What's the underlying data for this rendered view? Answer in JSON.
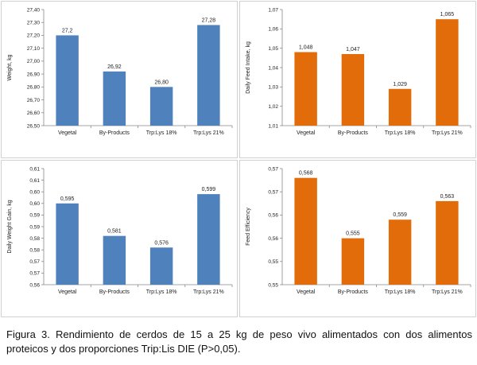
{
  "chart_data": [
    {
      "type": "bar",
      "categories": [
        "Vegetal",
        "By-Products",
        "Trp:Lys 18%",
        "Trp:Lys 21%"
      ],
      "values": [
        27.2,
        26.92,
        26.8,
        27.28
      ],
      "data_labels": [
        "27,2",
        "26,92",
        "26,80",
        "27,28"
      ],
      "ylabel": "Weight, kg",
      "ylim": [
        26.5,
        27.4
      ],
      "yticks": [
        "26,50",
        "26,60",
        "26,70",
        "26,80",
        "26,90",
        "27,00",
        "27,10",
        "27,20",
        "27,30",
        "27,40"
      ],
      "color": "#4f81bd",
      "grid": false
    },
    {
      "type": "bar",
      "categories": [
        "Vegetal",
        "By-Products",
        "Trp:Lys 18%",
        "Trp:Lys 21%"
      ],
      "values": [
        1.048,
        1.047,
        1.029,
        1.065
      ],
      "data_labels": [
        "1,048",
        "1,047",
        "1,029",
        "1,065"
      ],
      "ylabel": "Daily Feed Intake, kg",
      "ylim": [
        1.01,
        1.07
      ],
      "yticks": [
        "1,01",
        "1,02",
        "1,03",
        "1,04",
        "1,05",
        "1,06",
        "1,07"
      ],
      "color": "#e36c0a",
      "grid": false
    },
    {
      "type": "bar",
      "categories": [
        "Vegetal",
        "By-Products",
        "Trp:Lys 18%",
        "Trp:Lys 21%"
      ],
      "values": [
        0.595,
        0.581,
        0.576,
        0.599
      ],
      "data_labels": [
        "0,595",
        "0,581",
        "0,576",
        "0,599"
      ],
      "ylabel": "Daily Weight Gain, kg",
      "ylim": [
        0.56,
        0.61
      ],
      "yticks": [
        "0,56",
        "0,57",
        "0,57",
        "0,58",
        "0,58",
        "0,59",
        "0,59",
        "0,60",
        "0,60",
        "0,61",
        "0,61"
      ],
      "color": "#4f81bd",
      "grid": false
    },
    {
      "type": "bar",
      "categories": [
        "Vegetal",
        "By-Products",
        "Trp:Lys 18%",
        "Trp:Lys 21%"
      ],
      "values": [
        0.568,
        0.555,
        0.559,
        0.563
      ],
      "data_labels": [
        "0,568",
        "0,555",
        "0,559",
        "0,563"
      ],
      "ylabel": "Feed Efficiency",
      "ylim": [
        0.545,
        0.57
      ],
      "yticks": [
        "0,55",
        "0,55",
        "0,56",
        "0,56",
        "0,57",
        "0,57"
      ],
      "color": "#e36c0a",
      "grid": false
    }
  ],
  "caption": "Figura 3. Rendimiento de cerdos de 15 a 25 kg de peso vivo alimentados con dos alimentos proteicos y dos proporciones Trip:Lis DIE (P>0,05)."
}
